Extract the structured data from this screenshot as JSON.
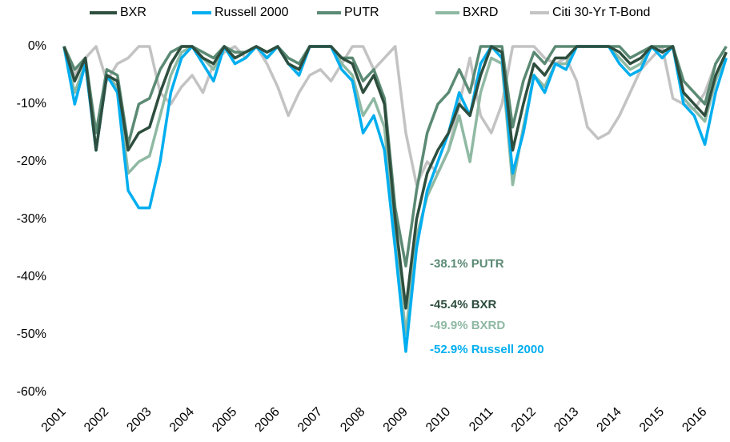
{
  "chart_data": {
    "type": "line",
    "x": [
      2001,
      2001.25,
      2001.5,
      2001.75,
      2002,
      2002.25,
      2002.5,
      2002.75,
      2003,
      2003.25,
      2003.5,
      2003.75,
      2004,
      2004.25,
      2004.5,
      2004.75,
      2005,
      2005.25,
      2005.5,
      2005.75,
      2006,
      2006.25,
      2006.5,
      2006.75,
      2007,
      2007.25,
      2007.5,
      2007.75,
      2008,
      2008.25,
      2008.5,
      2008.75,
      2009,
      2009.25,
      2009.5,
      2009.75,
      2010,
      2010.25,
      2010.5,
      2010.75,
      2011,
      2011.25,
      2011.5,
      2011.75,
      2012,
      2012.25,
      2012.5,
      2012.75,
      2013,
      2013.25,
      2013.5,
      2013.75,
      2014,
      2014.25,
      2014.5,
      2014.75,
      2015,
      2015.25,
      2015.5,
      2015.75,
      2016,
      2016.25,
      2016.5
    ],
    "series": [
      {
        "name": "BXR",
        "color": "#2e4e3e",
        "values": [
          0,
          -6,
          -2,
          -18,
          -5,
          -6,
          -18,
          -15,
          -14,
          -8,
          -3,
          0,
          0,
          -2,
          -3,
          0,
          -2,
          -1,
          0,
          -1,
          0,
          -3,
          -4,
          0,
          0,
          0,
          -2,
          -3,
          -8,
          -5,
          -10,
          -30,
          -45.4,
          -30,
          -22,
          -18,
          -15,
          -10,
          -12,
          -5,
          0,
          -1,
          -18,
          -10,
          -3,
          -5,
          -2,
          -2,
          0,
          0,
          0,
          0,
          -1,
          -3,
          -2,
          0,
          -1,
          0,
          -8,
          -10,
          -12,
          -5,
          -1
        ]
      },
      {
        "name": "Russell 2000",
        "color": "#00aeef",
        "values": [
          0,
          -10,
          -3,
          -18,
          -5,
          -8,
          -25,
          -28,
          -28,
          -20,
          -8,
          -2,
          0,
          -3,
          -6,
          0,
          -3,
          -2,
          0,
          -2,
          0,
          -3,
          -5,
          0,
          0,
          0,
          -4,
          -6,
          -15,
          -12,
          -18,
          -35,
          -52.9,
          -35,
          -25,
          -20,
          -15,
          -8,
          -12,
          -3,
          0,
          -2,
          -22,
          -15,
          -5,
          -8,
          -3,
          -4,
          0,
          0,
          0,
          0,
          -3,
          -5,
          -4,
          0,
          -2,
          0,
          -10,
          -12,
          -17,
          -8,
          -2
        ]
      },
      {
        "name": "PUTR",
        "color": "#5b8a74",
        "values": [
          0,
          -4,
          -2,
          -15,
          -4,
          -5,
          -17,
          -10,
          -9,
          -4,
          -1,
          0,
          0,
          -1,
          -2,
          0,
          -1,
          -1,
          0,
          -1,
          0,
          -2,
          -3,
          0,
          0,
          0,
          -2,
          -2,
          -6,
          -4,
          -9,
          -28,
          -38.1,
          -25,
          -15,
          -10,
          -8,
          -4,
          -8,
          0,
          0,
          0,
          -14,
          -6,
          -1,
          -3,
          0,
          0,
          0,
          0,
          0,
          0,
          0,
          -2,
          -1,
          0,
          0,
          0,
          -6,
          -8,
          -10,
          -3,
          0
        ]
      },
      {
        "name": "BXRD",
        "color": "#8fb9a3",
        "values": [
          0,
          -8,
          -3,
          -18,
          -5,
          -7,
          -22,
          -20,
          -19,
          -12,
          -5,
          -1,
          0,
          -2,
          -4,
          0,
          -2,
          -1,
          0,
          -2,
          0,
          -3,
          -4,
          0,
          0,
          0,
          -3,
          -5,
          -12,
          -9,
          -14,
          -33,
          -49.9,
          -33,
          -26,
          -22,
          -18,
          -12,
          -20,
          -8,
          -2,
          -3,
          -24,
          -14,
          -5,
          -7,
          -3,
          -3,
          0,
          0,
          0,
          0,
          -2,
          -4,
          -3,
          0,
          -1,
          0,
          -9,
          -11,
          -13,
          -6,
          -1
        ]
      },
      {
        "name": "Citi 30-Yr T-Bond",
        "color": "#c3c3c3",
        "values": [
          0,
          -5,
          -2,
          0,
          -6,
          -3,
          -2,
          0,
          0,
          -8,
          -10,
          -7,
          -5,
          -8,
          -3,
          -1,
          0,
          -2,
          0,
          -3,
          -7,
          -12,
          -8,
          -5,
          -4,
          -6,
          -3,
          0,
          0,
          -4,
          -2,
          0,
          -15,
          -24,
          -20,
          -22,
          -18,
          -10,
          -2,
          -12,
          -15,
          -10,
          0,
          0,
          0,
          -2,
          -3,
          -2,
          -6,
          -14,
          -16,
          -15,
          -12,
          -8,
          -4,
          -2,
          0,
          -9,
          -10,
          -11,
          -8,
          -3,
          0
        ]
      }
    ],
    "xlim": [
      2001,
      2016.55
    ],
    "xticks": [
      2001,
      2002,
      2003,
      2004,
      2005,
      2006,
      2007,
      2008,
      2009,
      2010,
      2011,
      2012,
      2013,
      2014,
      2015,
      2016
    ],
    "ylim": [
      -60,
      0
    ],
    "yticks": [
      {
        "value": 0,
        "label": "0%"
      },
      {
        "value": -10,
        "label": "-10%"
      },
      {
        "value": -20,
        "label": "-20%"
      },
      {
        "value": -30,
        "label": "-30%"
      },
      {
        "value": -40,
        "label": "-40%"
      },
      {
        "value": -50,
        "label": "-50%"
      },
      {
        "value": -60,
        "label": "-60%"
      }
    ],
    "annotations": [
      {
        "text": "-38.1% PUTR",
        "color": "#5b8a74"
      },
      {
        "text": "-45.4% BXR",
        "color": "#2e4e3e"
      },
      {
        "text": "-49.9% BXRD",
        "color": "#8fb9a3"
      },
      {
        "text": "-52.9% Russell 2000",
        "color": "#00aeef"
      }
    ]
  }
}
